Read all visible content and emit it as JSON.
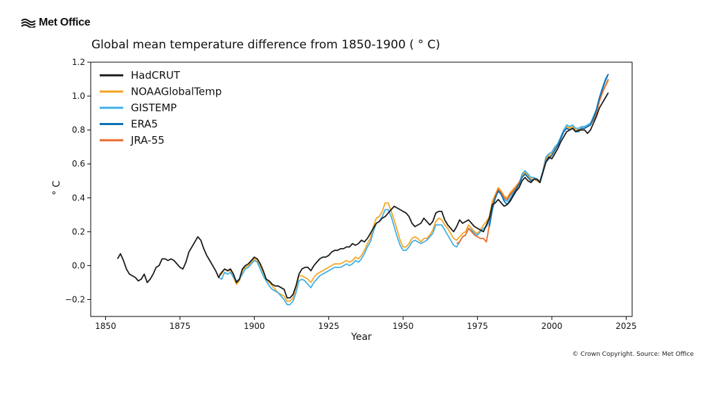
{
  "brand": {
    "logo_text": "Met Office",
    "logo_icon": "met-office-wave-icon"
  },
  "copyright": "© Crown Copyright. Source: Met Office",
  "colors": {
    "HadCRUT": "#1a1a1a",
    "NOAAGlobalTemp": "#f5a623",
    "GISTEMP": "#3fb0e8",
    "ERA5": "#0a6fb5",
    "JRA-55": "#e8692c"
  },
  "chart_data": {
    "type": "line",
    "title": "Global mean temperature difference from 1850-1900 ( ° C)",
    "xlabel": "Year",
    "ylabel": "° C",
    "xlim": [
      1845,
      2027
    ],
    "ylim": [
      -0.3,
      1.2
    ],
    "xticks": [
      1850,
      1875,
      1900,
      1925,
      1950,
      1975,
      2000,
      2025
    ],
    "xtick_labels": [
      "1850",
      "1875",
      "1900",
      "1925",
      "1950",
      "1975",
      "2000",
      "2025"
    ],
    "yticks": [
      -0.2,
      0.0,
      0.2,
      0.4,
      0.6,
      0.8,
      1.0,
      1.2
    ],
    "ytick_labels": [
      "−0.2",
      "0.0",
      "0.2",
      "0.4",
      "0.6",
      "0.8",
      "1.0",
      "1.2"
    ],
    "legend_position": "top-left",
    "grid": false,
    "series": [
      {
        "name": "HadCRUT",
        "x": [
          1854,
          1855,
          1856,
          1857,
          1858,
          1859,
          1860,
          1861,
          1862,
          1863,
          1864,
          1865,
          1866,
          1867,
          1868,
          1869,
          1870,
          1871,
          1872,
          1873,
          1874,
          1875,
          1876,
          1877,
          1878,
          1879,
          1880,
          1881,
          1882,
          1883,
          1884,
          1885,
          1886,
          1887,
          1888,
          1889,
          1890,
          1891,
          1892,
          1893,
          1894,
          1895,
          1896,
          1897,
          1898,
          1899,
          1900,
          1901,
          1902,
          1903,
          1904,
          1905,
          1906,
          1907,
          1908,
          1909,
          1910,
          1911,
          1912,
          1913,
          1914,
          1915,
          1916,
          1917,
          1918,
          1919,
          1920,
          1921,
          1922,
          1923,
          1924,
          1925,
          1926,
          1927,
          1928,
          1929,
          1930,
          1931,
          1932,
          1933,
          1934,
          1935,
          1936,
          1937,
          1938,
          1939,
          1940,
          1941,
          1942,
          1943,
          1944,
          1945,
          1946,
          1947,
          1948,
          1949,
          1950,
          1951,
          1952,
          1953,
          1954,
          1955,
          1956,
          1957,
          1958,
          1959,
          1960,
          1961,
          1962,
          1963,
          1964,
          1965,
          1966,
          1967,
          1968,
          1969,
          1970,
          1971,
          1972,
          1973,
          1974,
          1975,
          1976,
          1977,
          1978,
          1979,
          1980,
          1981,
          1982,
          1983,
          1984,
          1985,
          1986,
          1987,
          1988,
          1989,
          1990,
          1991,
          1992,
          1993,
          1994,
          1995,
          1996,
          1997,
          1998,
          1999,
          2000,
          2001,
          2002,
          2003,
          2004,
          2005,
          2006,
          2007,
          2008,
          2009,
          2010,
          2011,
          2012,
          2013,
          2014,
          2015,
          2016,
          2017,
          2018,
          2019
        ],
        "values": [
          0.04,
          0.07,
          0.03,
          -0.02,
          -0.05,
          -0.06,
          -0.07,
          -0.09,
          -0.08,
          -0.05,
          -0.1,
          -0.08,
          -0.05,
          -0.01,
          0.0,
          0.04,
          0.04,
          0.03,
          0.04,
          0.03,
          0.01,
          -0.01,
          -0.02,
          0.02,
          0.08,
          0.11,
          0.14,
          0.17,
          0.15,
          0.1,
          0.06,
          0.03,
          0.0,
          -0.03,
          -0.07,
          -0.04,
          -0.02,
          -0.03,
          -0.02,
          -0.05,
          -0.1,
          -0.08,
          -0.02,
          0.0,
          0.01,
          0.03,
          0.05,
          0.04,
          0.01,
          -0.03,
          -0.08,
          -0.09,
          -0.11,
          -0.12,
          -0.12,
          -0.13,
          -0.14,
          -0.19,
          -0.19,
          -0.17,
          -0.12,
          -0.05,
          -0.02,
          -0.01,
          -0.01,
          -0.03,
          0.0,
          0.02,
          0.04,
          0.05,
          0.05,
          0.06,
          0.08,
          0.09,
          0.09,
          0.1,
          0.1,
          0.11,
          0.11,
          0.13,
          0.12,
          0.13,
          0.15,
          0.14,
          0.16,
          0.19,
          0.22,
          0.25,
          0.26,
          0.28,
          0.29,
          0.31,
          0.33,
          0.35,
          0.34,
          0.33,
          0.32,
          0.31,
          0.29,
          0.25,
          0.23,
          0.24,
          0.25,
          0.28,
          0.26,
          0.24,
          0.26,
          0.31,
          0.32,
          0.32,
          0.27,
          0.24,
          0.22,
          0.2,
          0.23,
          0.27,
          0.25,
          0.26,
          0.27,
          0.25,
          0.23,
          0.22,
          0.21,
          0.2,
          0.24,
          0.28,
          0.36,
          0.37,
          0.39,
          0.37,
          0.35,
          0.36,
          0.38,
          0.41,
          0.44,
          0.46,
          0.5,
          0.52,
          0.5,
          0.49,
          0.51,
          0.51,
          0.49,
          0.55,
          0.61,
          0.64,
          0.63,
          0.66,
          0.69,
          0.73,
          0.76,
          0.79,
          0.8,
          0.81,
          0.79,
          0.8,
          0.8,
          0.8,
          0.78,
          0.8,
          0.84,
          0.88,
          0.93,
          0.96,
          0.99,
          1.02
        ]
      },
      {
        "name": "NOAAGlobalTemp",
        "x": [
          1888,
          1889,
          1890,
          1891,
          1892,
          1893,
          1894,
          1895,
          1896,
          1897,
          1898,
          1899,
          1900,
          1901,
          1902,
          1903,
          1904,
          1905,
          1906,
          1907,
          1908,
          1909,
          1910,
          1911,
          1912,
          1913,
          1914,
          1915,
          1916,
          1917,
          1918,
          1919,
          1920,
          1921,
          1922,
          1923,
          1924,
          1925,
          1926,
          1927,
          1928,
          1929,
          1930,
          1931,
          1932,
          1933,
          1934,
          1935,
          1936,
          1937,
          1938,
          1939,
          1940,
          1941,
          1942,
          1943,
          1944,
          1945,
          1946,
          1947,
          1948,
          1949,
          1950,
          1951,
          1952,
          1953,
          1954,
          1955,
          1956,
          1957,
          1958,
          1959,
          1960,
          1961,
          1962,
          1963,
          1964,
          1965,
          1966,
          1967,
          1968,
          1969,
          1970,
          1971,
          1972,
          1973,
          1974,
          1975,
          1976,
          1977,
          1978,
          1979,
          1980,
          1981,
          1982,
          1983,
          1984,
          1985,
          1986,
          1987,
          1988,
          1989,
          1990,
          1991,
          1992,
          1993,
          1994,
          1995,
          1996,
          1997,
          1998,
          1999,
          2000,
          2001,
          2002,
          2003,
          2004,
          2005,
          2006,
          2007,
          2008,
          2009,
          2010,
          2011,
          2012,
          2013,
          2014,
          2015,
          2016,
          2017,
          2018,
          2019
        ],
        "values": [
          -0.05,
          -0.05,
          -0.02,
          -0.03,
          -0.03,
          -0.07,
          -0.11,
          -0.09,
          -0.03,
          -0.01,
          0.0,
          0.02,
          0.04,
          0.03,
          0.0,
          -0.04,
          -0.08,
          -0.1,
          -0.12,
          -0.14,
          -0.16,
          -0.17,
          -0.18,
          -0.21,
          -0.21,
          -0.19,
          -0.13,
          -0.06,
          -0.06,
          -0.07,
          -0.08,
          -0.1,
          -0.07,
          -0.05,
          -0.04,
          -0.03,
          -0.02,
          -0.01,
          0.0,
          0.01,
          0.01,
          0.01,
          0.02,
          0.03,
          0.02,
          0.03,
          0.05,
          0.04,
          0.06,
          0.09,
          0.13,
          0.16,
          0.23,
          0.28,
          0.29,
          0.32,
          0.37,
          0.37,
          0.32,
          0.27,
          0.21,
          0.15,
          0.11,
          0.11,
          0.13,
          0.16,
          0.17,
          0.16,
          0.14,
          0.16,
          0.16,
          0.18,
          0.21,
          0.26,
          0.28,
          0.27,
          0.24,
          0.22,
          0.19,
          0.16,
          0.15,
          0.17,
          0.19,
          0.2,
          0.24,
          0.22,
          0.2,
          0.19,
          0.21,
          0.24,
          0.26,
          0.29,
          0.38,
          0.42,
          0.46,
          0.44,
          0.41,
          0.4,
          0.43,
          0.45,
          0.47,
          0.49,
          0.53,
          0.55,
          0.53,
          0.51,
          0.51,
          0.5,
          0.49,
          0.56,
          0.63,
          0.65,
          0.66,
          0.69,
          0.71,
          0.75,
          0.79,
          0.82,
          0.81,
          0.82,
          0.8,
          0.8,
          0.81,
          0.81,
          0.82,
          0.83,
          0.86,
          0.9,
          0.97,
          1.02,
          1.06,
          1.09
        ]
      },
      {
        "name": "GISTEMP",
        "x": [
          1888,
          1889,
          1890,
          1891,
          1892,
          1893,
          1894,
          1895,
          1896,
          1897,
          1898,
          1899,
          1900,
          1901,
          1902,
          1903,
          1904,
          1905,
          1906,
          1907,
          1908,
          1909,
          1910,
          1911,
          1912,
          1913,
          1914,
          1915,
          1916,
          1917,
          1918,
          1919,
          1920,
          1921,
          1922,
          1923,
          1924,
          1925,
          1926,
          1927,
          1928,
          1929,
          1930,
          1931,
          1932,
          1933,
          1934,
          1935,
          1936,
          1937,
          1938,
          1939,
          1940,
          1941,
          1942,
          1943,
          1944,
          1945,
          1946,
          1947,
          1948,
          1949,
          1950,
          1951,
          1952,
          1953,
          1954,
          1955,
          1956,
          1957,
          1958,
          1959,
          1960,
          1961,
          1962,
          1963,
          1964,
          1965,
          1966,
          1967,
          1968,
          1969,
          1970,
          1971,
          1972,
          1973,
          1974,
          1975,
          1976,
          1977,
          1978,
          1979,
          1980,
          1981,
          1982,
          1983,
          1984,
          1985,
          1986,
          1987,
          1988,
          1989,
          1990,
          1991,
          1992,
          1993,
          1994,
          1995,
          1996,
          1997,
          1998,
          1999,
          2000,
          2001,
          2002,
          2003,
          2004,
          2005,
          2006,
          2007,
          2008,
          2009,
          2010,
          2011,
          2012,
          2013,
          2014,
          2015,
          2016,
          2017,
          2018,
          2019
        ],
        "values": [
          -0.07,
          -0.08,
          -0.04,
          -0.05,
          -0.04,
          -0.07,
          -0.09,
          -0.08,
          -0.05,
          -0.02,
          -0.01,
          0.01,
          0.03,
          0.02,
          -0.02,
          -0.06,
          -0.09,
          -0.12,
          -0.14,
          -0.15,
          -0.16,
          -0.18,
          -0.2,
          -0.23,
          -0.23,
          -0.21,
          -0.16,
          -0.09,
          -0.08,
          -0.09,
          -0.11,
          -0.13,
          -0.1,
          -0.08,
          -0.06,
          -0.05,
          -0.04,
          -0.03,
          -0.02,
          -0.01,
          -0.01,
          -0.01,
          0.0,
          0.01,
          0.0,
          0.01,
          0.03,
          0.02,
          0.04,
          0.07,
          0.11,
          0.14,
          0.2,
          0.25,
          0.26,
          0.29,
          0.33,
          0.33,
          0.29,
          0.23,
          0.17,
          0.12,
          0.09,
          0.09,
          0.11,
          0.14,
          0.15,
          0.14,
          0.13,
          0.14,
          0.15,
          0.17,
          0.19,
          0.24,
          0.24,
          0.24,
          0.21,
          0.18,
          0.15,
          0.12,
          0.11,
          0.14,
          0.17,
          0.18,
          0.22,
          0.21,
          0.19,
          0.18,
          0.2,
          0.22,
          0.23,
          0.26,
          0.36,
          0.4,
          0.44,
          0.42,
          0.39,
          0.38,
          0.41,
          0.43,
          0.45,
          0.48,
          0.54,
          0.56,
          0.54,
          0.52,
          0.52,
          0.51,
          0.5,
          0.56,
          0.64,
          0.66,
          0.67,
          0.7,
          0.72,
          0.76,
          0.8,
          0.83,
          0.82,
          0.83,
          0.81,
          0.81,
          0.82,
          0.82,
          0.83,
          0.84,
          0.88,
          0.92,
          0.99,
          1.05,
          1.1,
          1.13
        ]
      },
      {
        "name": "ERA5",
        "x": [
          1979,
          1980,
          1981,
          1982,
          1983,
          1984,
          1985,
          1986,
          1987,
          1988,
          1989,
          1990,
          1991,
          1992,
          1993,
          1994,
          1995,
          1996,
          1997,
          1998,
          1999,
          2000,
          2001,
          2002,
          2003,
          2004,
          2005,
          2006,
          2007,
          2008,
          2009,
          2010,
          2011,
          2012,
          2013,
          2014,
          2015,
          2016,
          2017,
          2018,
          2019
        ],
        "values": [
          0.23,
          0.33,
          0.4,
          0.44,
          0.42,
          0.38,
          0.36,
          0.39,
          0.42,
          0.45,
          0.48,
          0.52,
          0.54,
          0.52,
          0.5,
          0.51,
          0.51,
          0.49,
          0.55,
          0.61,
          0.63,
          0.65,
          0.68,
          0.71,
          0.75,
          0.79,
          0.81,
          0.8,
          0.81,
          0.79,
          0.79,
          0.81,
          0.81,
          0.82,
          0.83,
          0.87,
          0.92,
          0.99,
          1.04,
          1.09,
          1.13
        ]
      },
      {
        "name": "JRA-55",
        "x": [
          1968,
          1969,
          1970,
          1971,
          1972,
          1973,
          1974,
          1975,
          1976,
          1977,
          1978,
          1979,
          1980,
          1981,
          1982,
          1983,
          1984,
          1985,
          1986,
          1987,
          1988,
          1989,
          1990,
          1991,
          1992,
          1993,
          1994,
          1995,
          1996,
          1997,
          1998,
          1999,
          2000,
          2001,
          2002,
          2003,
          2004,
          2005,
          2006,
          2007,
          2008,
          2009,
          2010,
          2011,
          2012,
          2013,
          2014,
          2015,
          2016,
          2017,
          2018,
          2019
        ],
        "values": [
          0.13,
          0.14,
          0.17,
          0.18,
          0.22,
          0.2,
          0.18,
          0.17,
          0.16,
          0.16,
          0.14,
          0.24,
          0.36,
          0.41,
          0.45,
          0.43,
          0.4,
          0.39,
          0.42,
          0.44,
          0.46,
          0.49,
          0.52,
          0.54,
          0.52,
          0.5,
          0.51,
          0.51,
          0.49,
          0.55,
          0.62,
          0.64,
          0.65,
          0.68,
          0.71,
          0.75,
          0.79,
          0.81,
          0.8,
          0.81,
          0.79,
          0.79,
          0.81,
          0.81,
          0.82,
          0.83,
          0.86,
          0.9,
          0.97,
          1.02,
          1.06,
          1.1
        ]
      }
    ]
  }
}
